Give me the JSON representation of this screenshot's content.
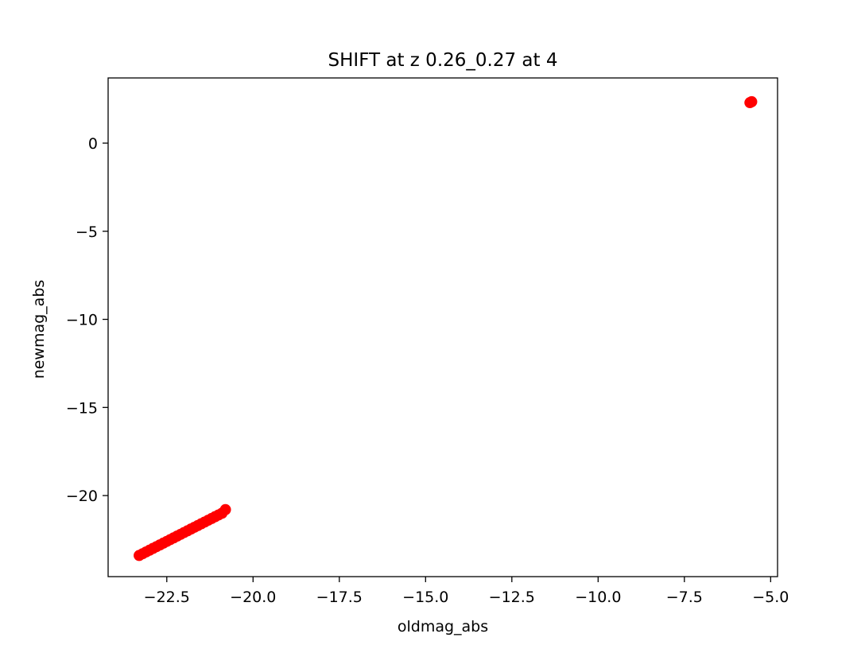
{
  "chart_data": {
    "type": "scatter",
    "title": "SHIFT at z 0.26_0.27 at 4",
    "xlabel": "oldmag_abs",
    "ylabel": "newmag_abs",
    "xlim": [
      -24.2,
      -4.8
    ],
    "ylim": [
      -24.6,
      3.7
    ],
    "xticks": [
      {
        "value": -22.5,
        "label": "−22.5"
      },
      {
        "value": -20.0,
        "label": "−20.0"
      },
      {
        "value": -17.5,
        "label": "−17.5"
      },
      {
        "value": -15.0,
        "label": "−15.0"
      },
      {
        "value": -12.5,
        "label": "−12.5"
      },
      {
        "value": -10.0,
        "label": "−10.0"
      },
      {
        "value": -7.5,
        "label": "−7.5"
      },
      {
        "value": -5.0,
        "label": "−5.0"
      }
    ],
    "yticks": [
      {
        "value": 0,
        "label": "0"
      },
      {
        "value": -5,
        "label": "−5"
      },
      {
        "value": -10,
        "label": "−10"
      },
      {
        "value": -15,
        "label": "−15"
      },
      {
        "value": -20,
        "label": "−20"
      }
    ],
    "grid": false,
    "legend": false,
    "series": [
      {
        "color": "#ff0000",
        "points": [
          {
            "x": -23.3,
            "y": -23.4
          },
          {
            "x": -23.2,
            "y": -23.3
          },
          {
            "x": -23.1,
            "y": -23.2
          },
          {
            "x": -23.0,
            "y": -23.1
          },
          {
            "x": -22.9,
            "y": -23.0
          },
          {
            "x": -22.8,
            "y": -22.9
          },
          {
            "x": -22.7,
            "y": -22.8
          },
          {
            "x": -22.6,
            "y": -22.7
          },
          {
            "x": -22.5,
            "y": -22.6
          },
          {
            "x": -22.4,
            "y": -22.5
          },
          {
            "x": -22.3,
            "y": -22.4
          },
          {
            "x": -22.2,
            "y": -22.3
          },
          {
            "x": -22.1,
            "y": -22.2
          },
          {
            "x": -22.0,
            "y": -22.1
          },
          {
            "x": -21.9,
            "y": -22.0
          },
          {
            "x": -21.8,
            "y": -21.9
          },
          {
            "x": -21.7,
            "y": -21.8
          },
          {
            "x": -21.6,
            "y": -21.7
          },
          {
            "x": -21.5,
            "y": -21.6
          },
          {
            "x": -21.4,
            "y": -21.5
          },
          {
            "x": -21.3,
            "y": -21.4
          },
          {
            "x": -21.2,
            "y": -21.3
          },
          {
            "x": -21.1,
            "y": -21.2
          },
          {
            "x": -21.0,
            "y": -21.1
          },
          {
            "x": -20.9,
            "y": -21.0
          },
          {
            "x": -20.8,
            "y": -20.8
          },
          {
            "x": -5.6,
            "y": 2.3
          },
          {
            "x": -5.55,
            "y": 2.35
          }
        ]
      }
    ]
  }
}
